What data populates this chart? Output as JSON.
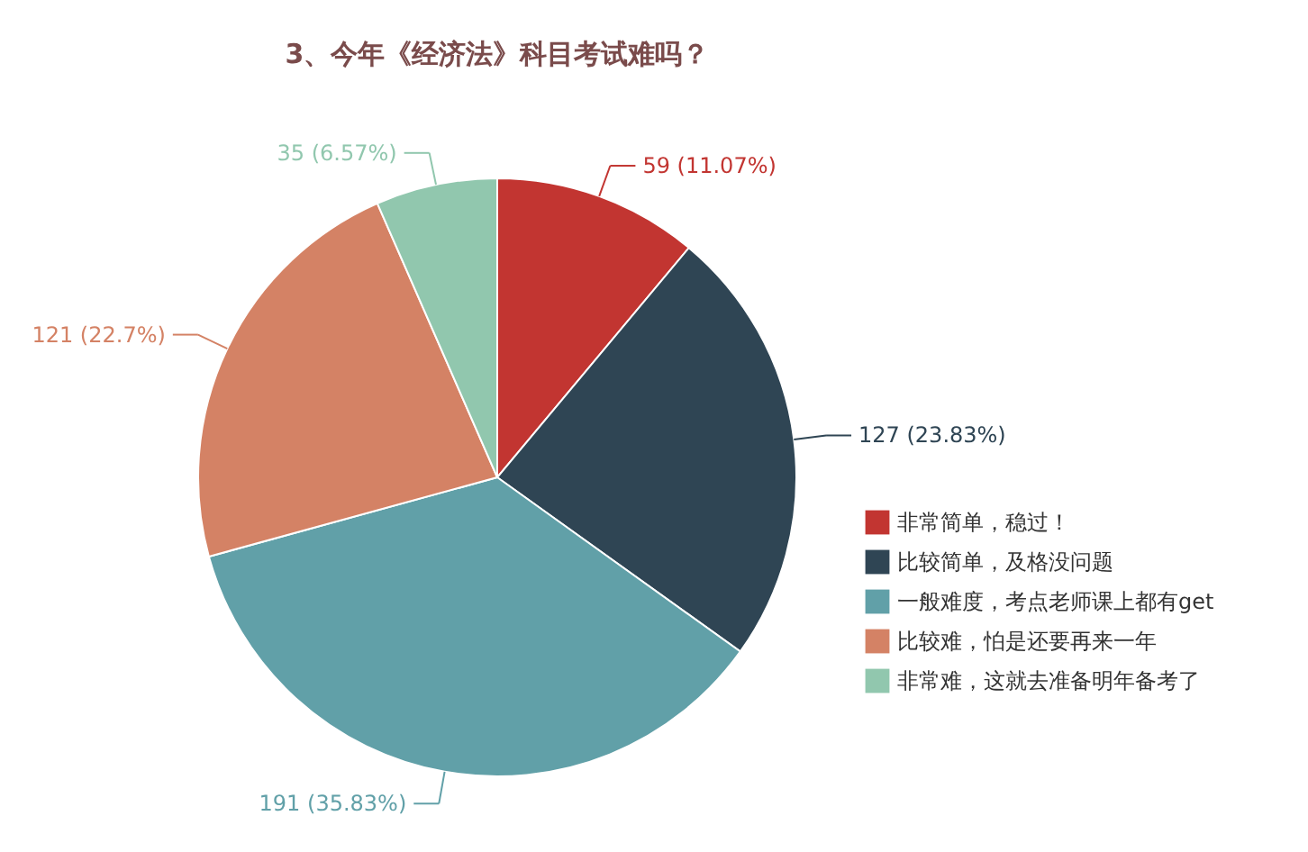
{
  "chart_data": {
    "type": "pie",
    "title": "3、今年《经济法》科目考试难吗？",
    "categories": [
      "非常简单，稳过！",
      "比较简单，及格没问题",
      "一般难度，考点老师课上都有get",
      "比较难，怕是还要再来一年",
      "非常难，这就去准备明年备考了"
    ],
    "values": [
      59,
      127,
      191,
      121,
      35
    ],
    "colors": [
      "#c23531",
      "#2f4554",
      "#61a0a8",
      "#d48265",
      "#91c7ae"
    ],
    "value_labels": [
      "59 (11.07%)",
      "127 (23.83%)",
      "191 (35.83%)",
      "121 (22.7%)",
      "35 (6.57%)"
    ],
    "legend": "bottom right"
  }
}
